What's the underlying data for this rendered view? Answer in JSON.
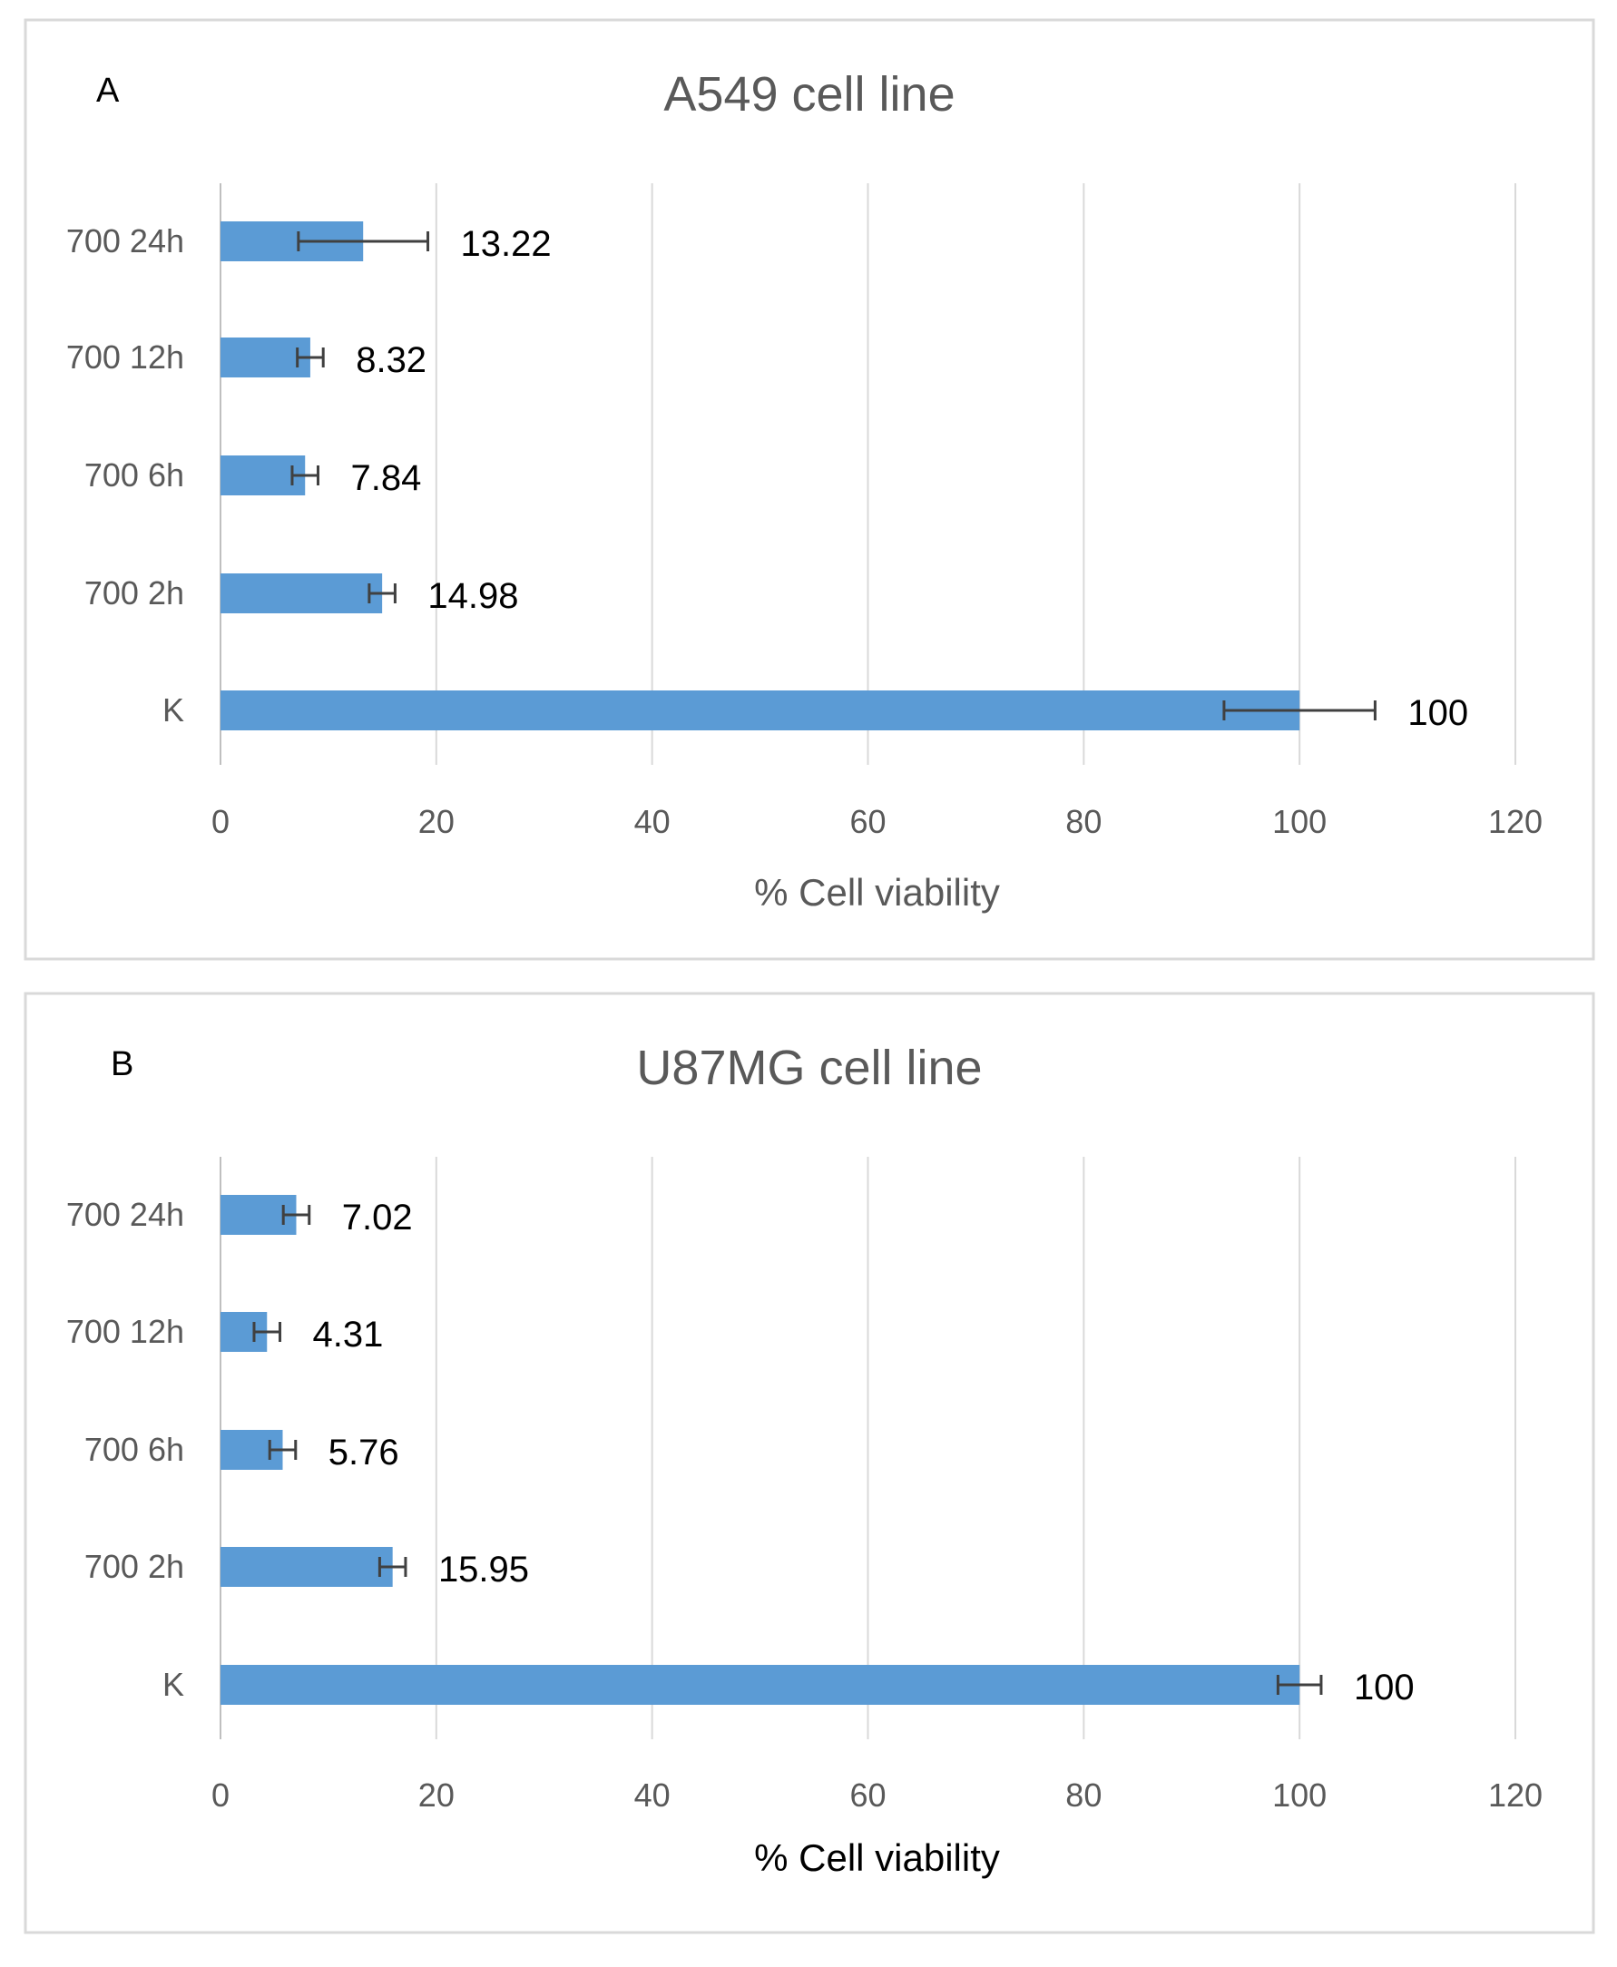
{
  "chart_data": [
    {
      "type": "bar",
      "orientation": "horizontal",
      "panel_label": "A",
      "title": "A549 cell line",
      "categories": [
        "700 24h",
        "700 12h",
        "700 6h",
        "700 2h",
        "K"
      ],
      "values": [
        13.22,
        8.32,
        7.84,
        14.98,
        100
      ],
      "value_labels": [
        "13.22",
        "8.32",
        "7.84",
        "14.98",
        "100"
      ],
      "error": [
        6.0,
        1.2,
        1.2,
        1.2,
        7.0
      ],
      "xlabel": "% Cell viability",
      "ylabel": "",
      "xlim": [
        0,
        120
      ],
      "xticks": [
        "0",
        "20",
        "40",
        "60",
        "80",
        "100",
        "120"
      ],
      "grid": true,
      "legend": "none",
      "color": "#5b9bd5"
    },
    {
      "type": "bar",
      "orientation": "horizontal",
      "panel_label": "B",
      "title": "U87MG cell line",
      "categories": [
        "700 24h",
        "700 12h",
        "700 6h",
        "700 2h",
        "K"
      ],
      "values": [
        7.02,
        4.31,
        5.76,
        15.95,
        100
      ],
      "value_labels": [
        "7.02",
        "4.31",
        "5.76",
        "15.95",
        "100"
      ],
      "error": [
        1.2,
        1.2,
        1.2,
        1.2,
        2.0
      ],
      "xlabel": "% Cell viability",
      "ylabel": "",
      "xlim": [
        0,
        120
      ],
      "xticks": [
        "0",
        "20",
        "40",
        "60",
        "80",
        "100",
        "120"
      ],
      "grid": true,
      "legend": "none",
      "color": "#5b9bd5"
    }
  ]
}
